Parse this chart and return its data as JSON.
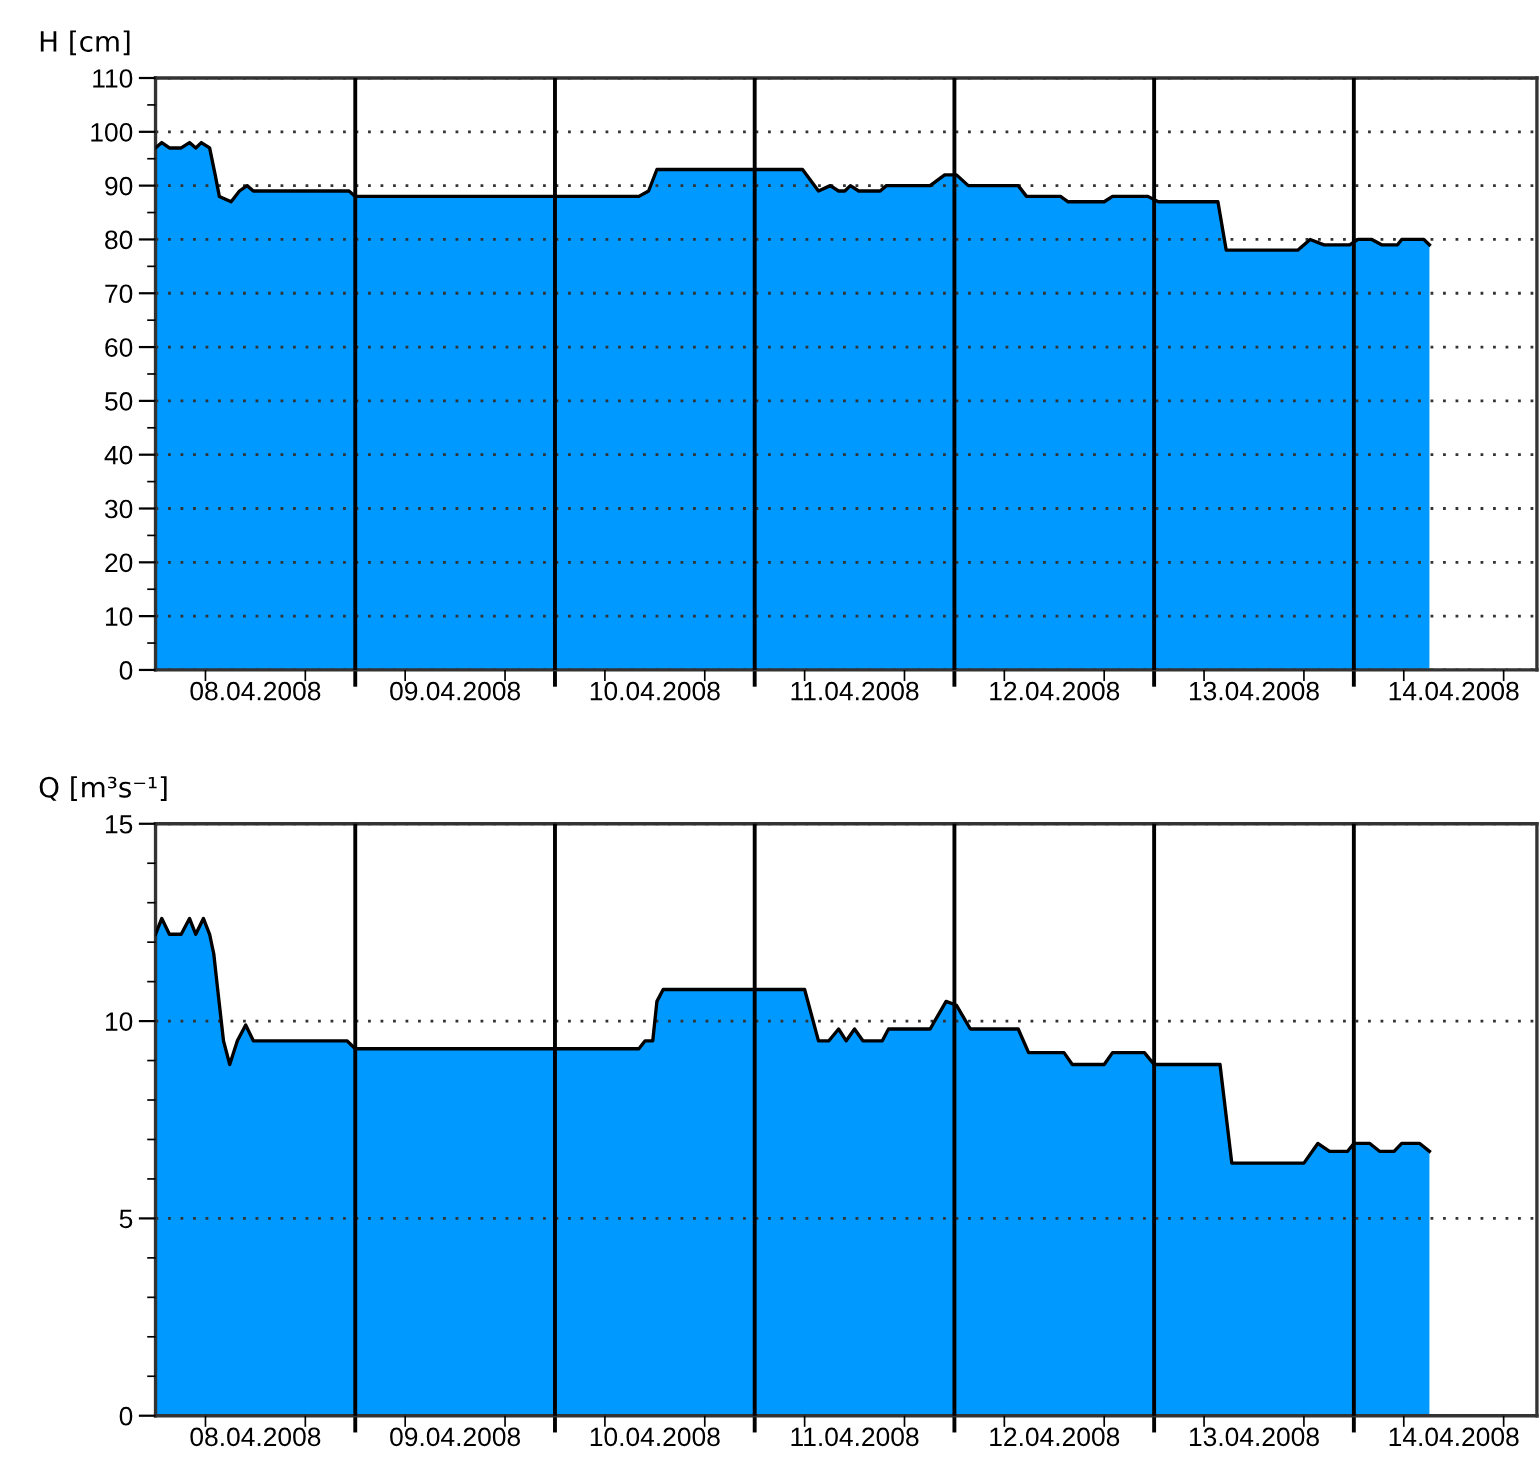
{
  "chart_data": [
    {
      "type": "area",
      "ylabel": "H [cm]",
      "x": [
        "2008-04-08T00:00",
        "2008-04-08T00:45",
        "2008-04-08T01:40",
        "2008-04-08T03:05",
        "2008-04-08T04:05",
        "2008-04-08T04:50",
        "2008-04-08T05:30",
        "2008-04-08T06:30",
        "2008-04-08T07:10",
        "2008-04-08T07:40",
        "2008-04-08T09:05",
        "2008-04-08T10:05",
        "2008-04-08T11:00",
        "2008-04-08T11:45",
        "2008-04-08T23:15",
        "2008-04-09T00:00",
        "2008-04-10T10:05",
        "2008-04-10T11:15",
        "2008-04-10T12:15",
        "2008-04-11T00:00",
        "2008-04-11T05:45",
        "2008-04-11T07:40",
        "2008-04-11T09:05",
        "2008-04-11T10:05",
        "2008-04-11T10:50",
        "2008-04-11T11:30",
        "2008-04-11T12:30",
        "2008-04-11T15:05",
        "2008-04-11T15:50",
        "2008-04-11T21:05",
        "2008-04-11T22:50",
        "2008-04-12T00:15",
        "2008-04-12T01:40",
        "2008-04-12T07:40",
        "2008-04-12T08:40",
        "2008-04-12T12:45",
        "2008-04-12T13:40",
        "2008-04-12T18:00",
        "2008-04-12T19:00",
        "2008-04-12T23:15",
        "2008-04-13T00:30",
        "2008-04-13T07:40",
        "2008-04-13T08:40",
        "2008-04-13T17:15",
        "2008-04-13T18:45",
        "2008-04-13T20:25",
        "2008-04-13T23:30",
        "2008-04-14T00:30",
        "2008-04-14T02:10",
        "2008-04-14T03:20",
        "2008-04-14T05:15",
        "2008-04-14T05:45",
        "2008-04-14T08:25",
        "2008-04-14T09:05"
      ],
      "series": [
        {
          "color": "#0099ff",
          "values": [
            97,
            98,
            97,
            97,
            98,
            97,
            98,
            97,
            92,
            88,
            87,
            89,
            90,
            89,
            89,
            88,
            88,
            89,
            93,
            93,
            93,
            89,
            90,
            89,
            89,
            90,
            89,
            89,
            90,
            90,
            92,
            92,
            90,
            90,
            88,
            88,
            87,
            87,
            88,
            88,
            87,
            87,
            78,
            78,
            80,
            79,
            79,
            80,
            80,
            79,
            79,
            80,
            80,
            79
          ]
        }
      ],
      "xlim": [
        "2008-04-08T00:00",
        "2008-04-14T22:00"
      ],
      "xticks": [
        {
          "value": "2008-04-08T06:00",
          "label": null
        },
        {
          "value": "2008-04-08T12:00",
          "label": "08.04.2008"
        },
        {
          "value": "2008-04-08T18:00",
          "label": null
        },
        {
          "value": "2008-04-09T06:00",
          "label": null
        },
        {
          "value": "2008-04-09T12:00",
          "label": "09.04.2008"
        },
        {
          "value": "2008-04-09T18:00",
          "label": null
        },
        {
          "value": "2008-04-10T06:00",
          "label": null
        },
        {
          "value": "2008-04-10T12:00",
          "label": "10.04.2008"
        },
        {
          "value": "2008-04-10T18:00",
          "label": null
        },
        {
          "value": "2008-04-11T06:00",
          "label": null
        },
        {
          "value": "2008-04-11T12:00",
          "label": "11.04.2008"
        },
        {
          "value": "2008-04-11T18:00",
          "label": null
        },
        {
          "value": "2008-04-12T06:00",
          "label": null
        },
        {
          "value": "2008-04-12T12:00",
          "label": "12.04.2008"
        },
        {
          "value": "2008-04-12T18:00",
          "label": null
        },
        {
          "value": "2008-04-13T06:00",
          "label": null
        },
        {
          "value": "2008-04-13T12:00",
          "label": "13.04.2008"
        },
        {
          "value": "2008-04-13T18:00",
          "label": null
        },
        {
          "value": "2008-04-14T06:00",
          "label": null
        },
        {
          "value": "2008-04-14T12:00",
          "label": "14.04.2008"
        },
        {
          "value": "2008-04-14T18:00",
          "label": null
        }
      ],
      "ylim": [
        0,
        110
      ],
      "yticks": [
        0,
        {
          "value": 5,
          "label": null
        },
        10,
        {
          "value": 15,
          "label": null
        },
        20,
        {
          "value": 25,
          "label": null
        },
        30,
        {
          "value": 35,
          "label": null
        },
        40,
        {
          "value": 45,
          "label": null
        },
        50,
        {
          "value": 55,
          "label": null
        },
        60,
        {
          "value": 65,
          "label": null
        },
        70,
        {
          "value": 75,
          "label": null
        },
        80,
        {
          "value": 85,
          "label": null
        },
        90,
        {
          "value": 95,
          "label": null
        },
        100,
        {
          "value": 105,
          "label": null
        },
        110
      ],
      "grid": "y",
      "ref_lines": [
        {
          "axis": "x",
          "value": "2008-04-09T00:00",
          "color": "#000000"
        },
        {
          "axis": "x",
          "value": "2008-04-10T00:00",
          "color": "#000000"
        },
        {
          "axis": "x",
          "value": "2008-04-11T00:00",
          "color": "#000000"
        },
        {
          "axis": "x",
          "value": "2008-04-12T00:00",
          "color": "#000000"
        },
        {
          "axis": "x",
          "value": "2008-04-13T00:00",
          "color": "#000000"
        },
        {
          "axis": "x",
          "value": "2008-04-14T00:00",
          "color": "#000000"
        }
      ]
    },
    {
      "type": "area",
      "ylabel": "Q [m³s⁻¹]",
      "x": [
        "2008-04-08T00:00",
        "2008-04-08T00:45",
        "2008-04-08T01:40",
        "2008-04-08T03:05",
        "2008-04-08T04:05",
        "2008-04-08T04:50",
        "2008-04-08T05:45",
        "2008-04-08T06:30",
        "2008-04-08T07:00",
        "2008-04-08T07:25",
        "2008-04-08T08:10",
        "2008-04-08T08:55",
        "2008-04-08T09:50",
        "2008-04-08T10:50",
        "2008-04-08T11:45",
        "2008-04-08T23:00",
        "2008-04-09T00:00",
        "2008-04-10T10:05",
        "2008-04-10T10:50",
        "2008-04-10T11:45",
        "2008-04-10T12:15",
        "2008-04-10T13:00",
        "2008-04-11T06:00",
        "2008-04-11T07:40",
        "2008-04-11T08:55",
        "2008-04-11T10:05",
        "2008-04-11T11:00",
        "2008-04-11T12:00",
        "2008-04-11T13:00",
        "2008-04-11T15:20",
        "2008-04-11T16:05",
        "2008-04-11T21:05",
        "2008-04-11T23:00",
        "2008-04-12T00:15",
        "2008-04-12T01:55",
        "2008-04-12T07:40",
        "2008-04-12T08:55",
        "2008-04-12T13:10",
        "2008-04-12T14:10",
        "2008-04-12T18:00",
        "2008-04-12T19:00",
        "2008-04-12T22:50",
        "2008-04-13T00:00",
        "2008-04-13T07:55",
        "2008-04-13T09:20",
        "2008-04-13T18:00",
        "2008-04-13T19:40",
        "2008-04-13T21:05",
        "2008-04-13T23:15",
        "2008-04-14T00:00",
        "2008-04-14T01:55",
        "2008-04-14T03:05",
        "2008-04-14T04:50",
        "2008-04-14T05:45",
        "2008-04-14T07:55",
        "2008-04-14T09:05"
      ],
      "series": [
        {
          "color": "#0099ff",
          "values": [
            12.2,
            12.6,
            12.2,
            12.2,
            12.6,
            12.2,
            12.6,
            12.2,
            11.7,
            10.9,
            9.5,
            8.9,
            9.5,
            9.9,
            9.5,
            9.5,
            9.3,
            9.3,
            9.5,
            9.5,
            10.5,
            10.8,
            10.8,
            9.5,
            9.5,
            9.8,
            9.5,
            9.8,
            9.5,
            9.5,
            9.8,
            9.8,
            10.5,
            10.4,
            9.8,
            9.8,
            9.2,
            9.2,
            8.9,
            8.9,
            9.2,
            9.2,
            8.9,
            8.9,
            6.4,
            6.4,
            6.9,
            6.7,
            6.7,
            6.9,
            6.9,
            6.7,
            6.7,
            6.9,
            6.9,
            6.7
          ]
        }
      ],
      "xlim": [
        "2008-04-08T00:00",
        "2008-04-14T22:00"
      ],
      "xticks": [
        {
          "value": "2008-04-08T06:00",
          "label": null
        },
        {
          "value": "2008-04-08T12:00",
          "label": "08.04.2008"
        },
        {
          "value": "2008-04-08T18:00",
          "label": null
        },
        {
          "value": "2008-04-09T06:00",
          "label": null
        },
        {
          "value": "2008-04-09T12:00",
          "label": "09.04.2008"
        },
        {
          "value": "2008-04-09T18:00",
          "label": null
        },
        {
          "value": "2008-04-10T06:00",
          "label": null
        },
        {
          "value": "2008-04-10T12:00",
          "label": "10.04.2008"
        },
        {
          "value": "2008-04-10T18:00",
          "label": null
        },
        {
          "value": "2008-04-11T06:00",
          "label": null
        },
        {
          "value": "2008-04-11T12:00",
          "label": "11.04.2008"
        },
        {
          "value": "2008-04-11T18:00",
          "label": null
        },
        {
          "value": "2008-04-12T06:00",
          "label": null
        },
        {
          "value": "2008-04-12T12:00",
          "label": "12.04.2008"
        },
        {
          "value": "2008-04-12T18:00",
          "label": null
        },
        {
          "value": "2008-04-13T06:00",
          "label": null
        },
        {
          "value": "2008-04-13T12:00",
          "label": "13.04.2008"
        },
        {
          "value": "2008-04-13T18:00",
          "label": null
        },
        {
          "value": "2008-04-14T06:00",
          "label": null
        },
        {
          "value": "2008-04-14T12:00",
          "label": "14.04.2008"
        },
        {
          "value": "2008-04-14T18:00",
          "label": null
        }
      ],
      "ylim": [
        0,
        15
      ],
      "yticks": [
        0,
        {
          "value": 1,
          "label": null
        },
        {
          "value": 2,
          "label": null
        },
        {
          "value": 3,
          "label": null
        },
        {
          "value": 4,
          "label": null
        },
        5,
        {
          "value": 6,
          "label": null
        },
        {
          "value": 7,
          "label": null
        },
        {
          "value": 8,
          "label": null
        },
        {
          "value": 9,
          "label": null
        },
        10,
        {
          "value": 11,
          "label": null
        },
        {
          "value": 12,
          "label": null
        },
        {
          "value": 13,
          "label": null
        },
        {
          "value": 14,
          "label": null
        },
        15
      ],
      "grid": "y",
      "ref_lines": [
        {
          "axis": "x",
          "value": "2008-04-09T00:00",
          "color": "#000000"
        },
        {
          "axis": "x",
          "value": "2008-04-10T00:00",
          "color": "#000000"
        },
        {
          "axis": "x",
          "value": "2008-04-11T00:00",
          "color": "#000000"
        },
        {
          "axis": "x",
          "value": "2008-04-12T00:00",
          "color": "#000000"
        },
        {
          "axis": "x",
          "value": "2008-04-13T00:00",
          "color": "#000000"
        },
        {
          "axis": "x",
          "value": "2008-04-14T00:00",
          "color": "#000000"
        }
      ]
    }
  ]
}
